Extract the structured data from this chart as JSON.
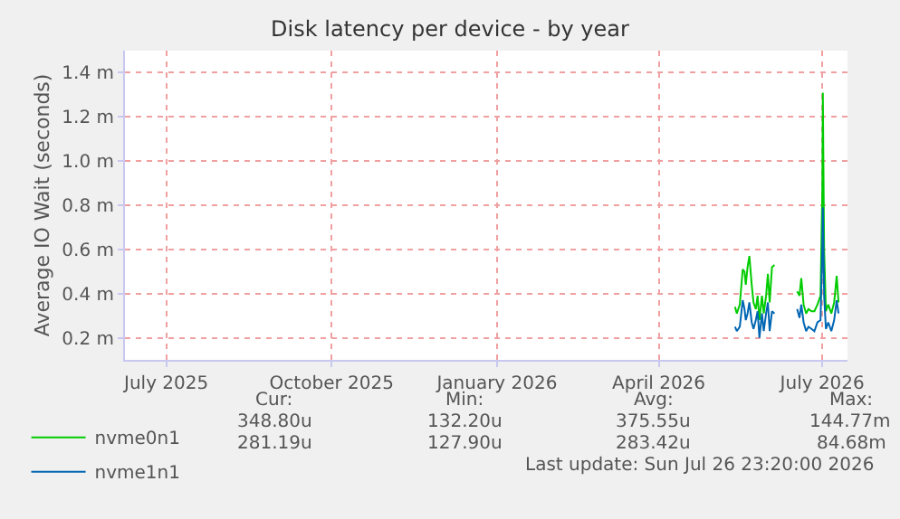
{
  "chart_data": {
    "type": "line",
    "title": "Disk latency per device - by year",
    "ylabel": "Average IO Wait (seconds)",
    "x": [
      "2026-05-13T10:00",
      "2026-05-14T10:00",
      "2026-05-16T02:00",
      "2026-05-17T17:00",
      "2026-05-18T17:00",
      "2026-05-19T10:00",
      "2026-05-20T10:00",
      "2026-05-21T10:00",
      "2026-05-22T17:00",
      "2026-05-23T17:00",
      "2026-05-25T00:00",
      "2026-05-26T00:00",
      "2026-05-27T00:00",
      "2026-05-28T10:00",
      "2026-05-29T10:00",
      "2026-05-30T17:00",
      "2026-05-31T17:00",
      "2026-06-01T17:00",
      "2026-06-03T00:00",
      "2026-06-04T10:00",
      "2026-06-10T00:00",
      "2026-06-17T00:00",
      "2026-06-18T07:00",
      "2026-06-19T07:00",
      "2026-06-20T14:00",
      "2026-06-22T00:00",
      "2026-06-23T07:00",
      "2026-06-25T00:00",
      "2026-06-26T14:00",
      "2026-06-28T07:00",
      "2026-06-30T00:00",
      "2026-07-01T00:00",
      "2026-07-01T07:00",
      "2026-07-02T00:00",
      "2026-07-03T00:00",
      "2026-07-04T07:00",
      "2026-07-06T00:00",
      "2026-07-07T14:00",
      "2026-07-09T00:00",
      "2026-07-10T00:00"
    ],
    "series": [
      {
        "name": "nvme0n1",
        "color": "#00cc00",
        "values": [
          0.34,
          0.31,
          0.35,
          0.51,
          0.5,
          0.44,
          0.52,
          0.57,
          0.44,
          0.36,
          0.33,
          0.39,
          0.28,
          0.39,
          0.31,
          0.39,
          0.49,
          0.36,
          0.52,
          0.53,
          null,
          0.41,
          0.39,
          0.47,
          0.35,
          0.31,
          0.33,
          0.32,
          0.32,
          0.35,
          0.39,
          0.87,
          1.31,
          0.6,
          0.32,
          0.35,
          0.31,
          0.36,
          0.48,
          0.36
        ]
      },
      {
        "name": "nvme1n1",
        "color": "#0066b3",
        "values": [
          0.25,
          0.23,
          0.25,
          0.37,
          0.33,
          0.28,
          0.31,
          0.36,
          0.27,
          0.24,
          0.28,
          0.32,
          0.2,
          0.31,
          0.23,
          0.31,
          0.36,
          0.23,
          0.32,
          0.31,
          null,
          0.33,
          0.29,
          0.35,
          0.27,
          0.23,
          0.25,
          0.24,
          0.23,
          0.27,
          0.28,
          0.6,
          0.79,
          0.39,
          0.24,
          0.27,
          0.23,
          0.28,
          0.37,
          0.31
        ]
      }
    ],
    "xlim": [
      "2025-06-08",
      "2026-07-15"
    ],
    "xticks": [
      {
        "value": "2025-07-01",
        "label": "July 2025"
      },
      {
        "value": "2025-10-01",
        "label": "October 2025"
      },
      {
        "value": "2026-01-01",
        "label": "January 2026"
      },
      {
        "value": "2026-04-01",
        "label": "April 2026"
      },
      {
        "value": "2026-07-01",
        "label": "July 2026"
      }
    ],
    "ylim": [
      0.1,
      1.5
    ],
    "yticks": [
      {
        "value": 0.2,
        "label": "0.2 m"
      },
      {
        "value": 0.4,
        "label": "0.4 m"
      },
      {
        "value": 0.6,
        "label": "0.6 m"
      },
      {
        "value": 0.8,
        "label": "0.8 m"
      },
      {
        "value": 1.0,
        "label": "1.0 m"
      },
      {
        "value": 1.2,
        "label": "1.2 m"
      },
      {
        "value": 1.4,
        "label": "1.4 m"
      }
    ],
    "grid": true,
    "legend": "bottom left",
    "marker": "none",
    "line_style": "solid",
    "annotations": [
      "Cur:",
      "Min:",
      "Avg:",
      "Max:",
      "348.80u",
      "132.20u",
      "375.55u",
      "144.77m",
      "281.19u",
      "127.90u",
      "283.42u",
      "84.68m",
      "Last update: Sun Jul 26 23:20:00 2026"
    ]
  }
}
